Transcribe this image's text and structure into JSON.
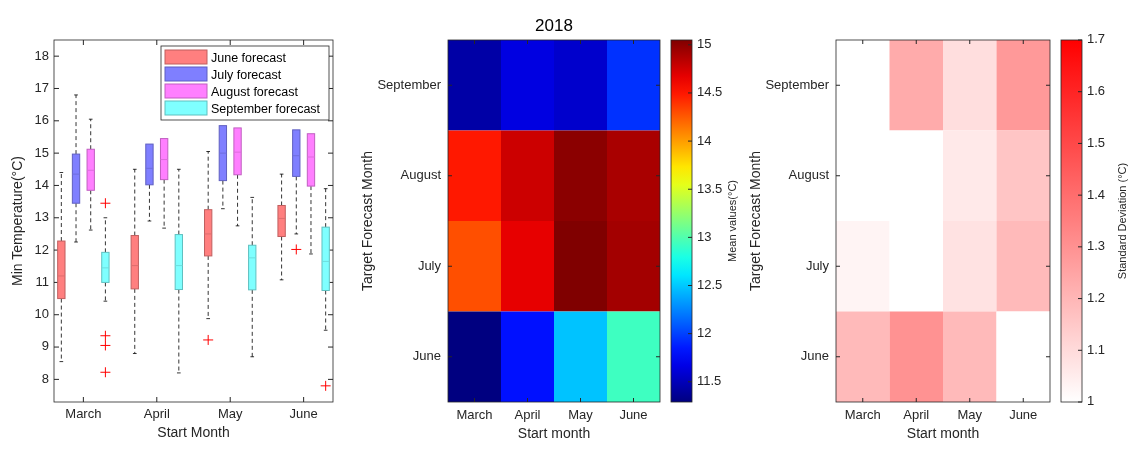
{
  "chart_data": [
    {
      "type": "box",
      "xlabel": "Start Month",
      "ylabel": "Min Temperature(°C)",
      "categories": [
        "March",
        "April",
        "May",
        "June"
      ],
      "ylim": [
        7.3,
        18.5
      ],
      "yticks": [
        8,
        9,
        10,
        11,
        12,
        13,
        14,
        15,
        16,
        17,
        18
      ],
      "legend": "top right",
      "marker": "cross",
      "series": [
        {
          "name": "June forecast",
          "color": "#ff7f7f",
          "boxes": [
            {
              "low": 8.55,
              "q1": 10.5,
              "median": 11.2,
              "q3": 12.28,
              "high": 14.4
            },
            {
              "low": 8.8,
              "q1": 10.8,
              "median": 11.52,
              "q3": 12.45,
              "high": 14.5
            },
            {
              "low": 9.88,
              "q1": 11.82,
              "median": 12.5,
              "q3": 13.25,
              "high": 15.05,
              "outliers": [
                9.22
              ]
            },
            {
              "low": 11.08,
              "q1": 12.42,
              "median": 12.98,
              "q3": 13.38,
              "high": 14.35
            }
          ]
        },
        {
          "name": "July forecast",
          "color": "#7f7fff",
          "boxes": [
            {
              "low": 12.25,
              "q1": 13.45,
              "median": 14.35,
              "q3": 14.97,
              "high": 16.8
            },
            {
              "low": 12.9,
              "q1": 14.02,
              "median": 14.53,
              "q3": 15.28,
              "high": null
            },
            {
              "low": 13.28,
              "q1": 14.15,
              "median": 15,
              "q3": 15.85,
              "high": null
            },
            {
              "low": 12.5,
              "q1": 14.28,
              "median": 14.92,
              "q3": 15.72,
              "high": null,
              "outliers": [
                12.02
              ]
            }
          ]
        },
        {
          "name": "August forecast",
          "color": "#ff7fff",
          "boxes": [
            {
              "low": 12.62,
              "q1": 13.85,
              "median": 14.47,
              "q3": 15.12,
              "high": 16.05
            },
            {
              "low": 12.68,
              "q1": 14.18,
              "median": 14.8,
              "q3": 15.45,
              "high": null
            },
            {
              "low": 12.75,
              "q1": 14.33,
              "median": 15.03,
              "q3": 15.78,
              "high": null
            },
            {
              "low": 11.88,
              "q1": 13.98,
              "median": 14.88,
              "q3": 15.6,
              "high": null
            }
          ]
        },
        {
          "name": "September forecast",
          "color": "#7fffff",
          "boxes": [
            {
              "low": 10.42,
              "q1": 11,
              "median": 11.45,
              "q3": 11.93,
              "high": 13,
              "outliers": [
                13.45,
                9.35,
                9.05,
                8.22
              ]
            },
            {
              "low": 8.2,
              "q1": 10.78,
              "median": 11.52,
              "q3": 12.48,
              "high": 14.5
            },
            {
              "low": 8.7,
              "q1": 10.77,
              "median": 11.76,
              "q3": 12.15,
              "high": 13.63
            },
            {
              "low": 9.52,
              "q1": 10.75,
              "median": 11.65,
              "q3": 12.71,
              "high": 13.9,
              "outliers": [
                7.8
              ]
            }
          ]
        }
      ]
    },
    {
      "type": "heatmap",
      "title": "2018",
      "xlabel": "Start month",
      "ylabel": "Target Forecast Month",
      "clabel": "Mean values(°C)",
      "categories": [
        "March",
        "April",
        "May",
        "June"
      ],
      "y_categories": [
        "September",
        "August",
        "July",
        "June"
      ],
      "cells": [
        [
          11.43,
          11.65,
          11.57,
          11.94
        ],
        [
          14.49,
          14.77,
          15.01,
          14.9
        ],
        [
          14.29,
          14.67,
          15.05,
          14.92
        ],
        [
          11.29,
          11.82,
          12.48,
          12.93
        ]
      ],
      "clim": [
        11.29,
        15.05
      ],
      "cticks": [
        11.5,
        12,
        12.5,
        13,
        13.5,
        14,
        14.5,
        15
      ]
    },
    {
      "type": "heatmap",
      "xlabel": "Start month",
      "ylabel": "Target Forecast Month",
      "clabel": "Standard Deviation (°C)",
      "categories": [
        "March",
        "April",
        "May",
        "June"
      ],
      "y_categories": [
        "September",
        "August",
        "July",
        "June"
      ],
      "color": "#ff0000",
      "cells": [
        [
          1,
          1.23,
          1.09,
          1.28
        ],
        [
          1,
          1,
          1.06,
          1.16
        ],
        [
          1.03,
          1,
          1.08,
          1.19
        ],
        [
          1.19,
          1.3,
          1.19,
          1
        ]
      ],
      "clim": [
        1,
        1.7
      ],
      "cticks": [
        1,
        1.1,
        1.2,
        1.3,
        1.4,
        1.5,
        1.6,
        1.7
      ]
    }
  ]
}
